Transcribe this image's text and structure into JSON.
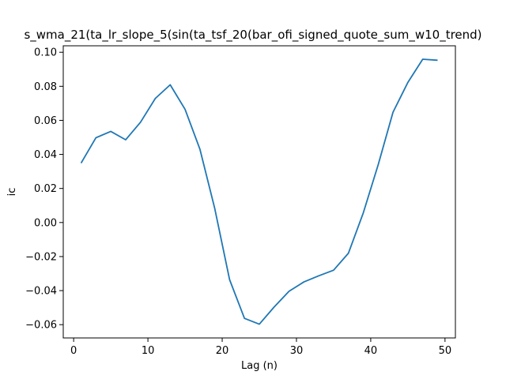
{
  "chart_data": {
    "type": "line",
    "title": "s_wma_21(ta_lr_slope_5(sin(ta_tsf_20(bar_ofi_signed_quote_sum_w10_trend)",
    "xlabel": "Lag (n)",
    "ylabel": "ic",
    "xlim": [
      -1.4,
      51.4
    ],
    "ylim": [
      -0.0678,
      0.1038
    ],
    "xticks": [
      0,
      10,
      20,
      30,
      40,
      50
    ],
    "yticks": [
      -0.06,
      -0.04,
      -0.02,
      0.0,
      0.02,
      0.04,
      0.06,
      0.08,
      0.1
    ],
    "ytick_labels": [
      "−0.06",
      "−0.04",
      "−0.02",
      "0.00",
      "0.02",
      "0.04",
      "0.06",
      "0.08",
      "0.10"
    ],
    "grid": false,
    "series": [
      {
        "color": "#1f77b4",
        "x": [
          1,
          3,
          5,
          7,
          9,
          11,
          13,
          15,
          17,
          19,
          21,
          23,
          25,
          27,
          29,
          31,
          33,
          35,
          37,
          39,
          41,
          43,
          45,
          47,
          49
        ],
        "y": [
          0.0349,
          0.0498,
          0.0535,
          0.0486,
          0.0589,
          0.0729,
          0.0809,
          0.0665,
          0.0431,
          0.0082,
          -0.0336,
          -0.0563,
          -0.0597,
          -0.0496,
          -0.0404,
          -0.0349,
          -0.0313,
          -0.028,
          -0.018,
          0.0057,
          0.0339,
          0.0648,
          0.0823,
          0.0959,
          0.0953
        ]
      }
    ]
  }
}
